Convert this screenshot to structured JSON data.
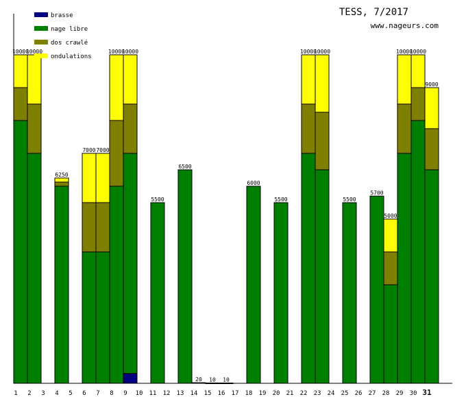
{
  "chart_data": {
    "type": "bar",
    "stacked": true,
    "title": "TESS, 7/2017",
    "subtitle": "www.nageurs.com",
    "ylim": [
      0,
      10000
    ],
    "grid": false,
    "legend_position": "top-left",
    "categories": [
      "1",
      "2",
      "3",
      "4",
      "5",
      "6",
      "7",
      "8",
      "9",
      "10",
      "11",
      "12",
      "13",
      "14",
      "15",
      "16",
      "17",
      "18",
      "19",
      "20",
      "21",
      "22",
      "23",
      "24",
      "25",
      "26",
      "27",
      "28",
      "29",
      "30",
      "31"
    ],
    "highlight_category": "31",
    "series": [
      {
        "name": "brasse",
        "color": "#000080",
        "values": [
          0,
          0,
          0,
          0,
          0,
          0,
          0,
          0,
          300,
          0,
          0,
          0,
          0,
          0,
          0,
          0,
          0,
          0,
          0,
          0,
          0,
          0,
          0,
          0,
          0,
          0,
          0,
          0,
          0,
          0,
          0
        ]
      },
      {
        "name": "nage libre",
        "color": "#008000",
        "values": [
          8000,
          7000,
          0,
          6000,
          0,
          4000,
          4000,
          6000,
          6700,
          0,
          5500,
          0,
          6500,
          20,
          10,
          10,
          0,
          6000,
          0,
          5500,
          0,
          7000,
          6500,
          0,
          5500,
          0,
          5700,
          3000,
          7000,
          8000,
          6500
        ]
      },
      {
        "name": "dos crawlé",
        "color": "#808000",
        "values": [
          1000,
          1500,
          0,
          125,
          0,
          1500,
          1500,
          2000,
          1500,
          0,
          0,
          0,
          0,
          0,
          0,
          0,
          0,
          0,
          0,
          0,
          0,
          1500,
          1750,
          0,
          0,
          0,
          0,
          1000,
          1500,
          1000,
          1250
        ]
      },
      {
        "name": "ondulations",
        "color": "#ffff00",
        "values": [
          1000,
          1500,
          0,
          125,
          0,
          1500,
          1500,
          2000,
          1500,
          0,
          0,
          0,
          0,
          0,
          0,
          0,
          0,
          0,
          0,
          0,
          0,
          1500,
          1750,
          0,
          0,
          0,
          0,
          1000,
          1500,
          1000,
          1250
        ]
      }
    ],
    "totals": [
      "10000",
      "10000",
      "",
      "6250",
      "",
      "7000",
      "7000",
      "10000",
      "10000",
      "",
      "5500",
      "",
      "6500",
      "20",
      "10",
      "10",
      "",
      "6000",
      "",
      "5500",
      "",
      "10000",
      "10000",
      "",
      "5500",
      "",
      "5700",
      "5000",
      "10000",
      "10000",
      "9000"
    ]
  }
}
